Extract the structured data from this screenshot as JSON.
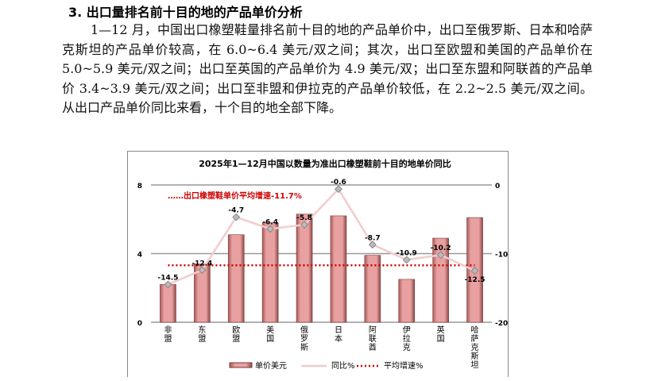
{
  "section_title": "3. 出口量排名前十目的地的产品单价分析",
  "paragraph": "1—12 月，中国出口橡塑鞋量排名前十目的地的产品单价中，出口至俄罗斯、日本和哈萨克斯坦的产品单价较高，在 6.0~6.4 美元/双之间；其次，出口至欧盟和美国的产品单价在 5.0~5.9 美元/双之间；出口至英国的产品单价为 4.9 美元/双；出口至东盟和阿联酋的产品单价 3.4~3.9 美元/双之间；出口至非盟和伊拉克的产品单价较低，在 2.2~2.5 美元/双之间。从出口产品单价同比来看，十个目的地全部下降。",
  "chart_data": {
    "type": "bar+line",
    "title": "2025年1—12月中国以数量为准出口橡塑鞋前十目的地单价同比",
    "categories": [
      "非盟",
      "东盟",
      "欧盟",
      "美国",
      "俄罗斯",
      "日本",
      "阿联酋",
      "伊拉克",
      "英国",
      "哈萨克斯坦"
    ],
    "series": [
      {
        "name": "单价美元",
        "type": "bar",
        "axis": "left",
        "values": [
          2.2,
          3.4,
          5.1,
          5.8,
          6.3,
          6.2,
          3.9,
          2.5,
          4.9,
          6.1
        ],
        "color": "#e8a0a0"
      },
      {
        "name": "同比%",
        "type": "line",
        "axis": "right",
        "values": [
          -14.5,
          -12.4,
          -4.7,
          -6.4,
          -5.8,
          -0.6,
          -8.7,
          -10.9,
          -10.2,
          -12.5
        ],
        "color": "#f2cccc"
      },
      {
        "name": "平均增速%",
        "type": "line",
        "axis": "right",
        "style": "dotted",
        "values": [
          -11.7,
          -11.7,
          -11.7,
          -11.7,
          -11.7,
          -11.7,
          -11.7,
          -11.7,
          -11.7,
          -11.7
        ],
        "color": "#cc0000"
      }
    ],
    "annotation": "……出口橡塑鞋单价平均增速-11.7%",
    "ylim_left": [
      0,
      8
    ],
    "yticks_left": [
      0,
      4,
      8
    ],
    "ylim_right": [
      -20,
      0
    ],
    "yticks_right": [
      -20,
      -10,
      0
    ],
    "grid": true,
    "legend": "bottom"
  }
}
